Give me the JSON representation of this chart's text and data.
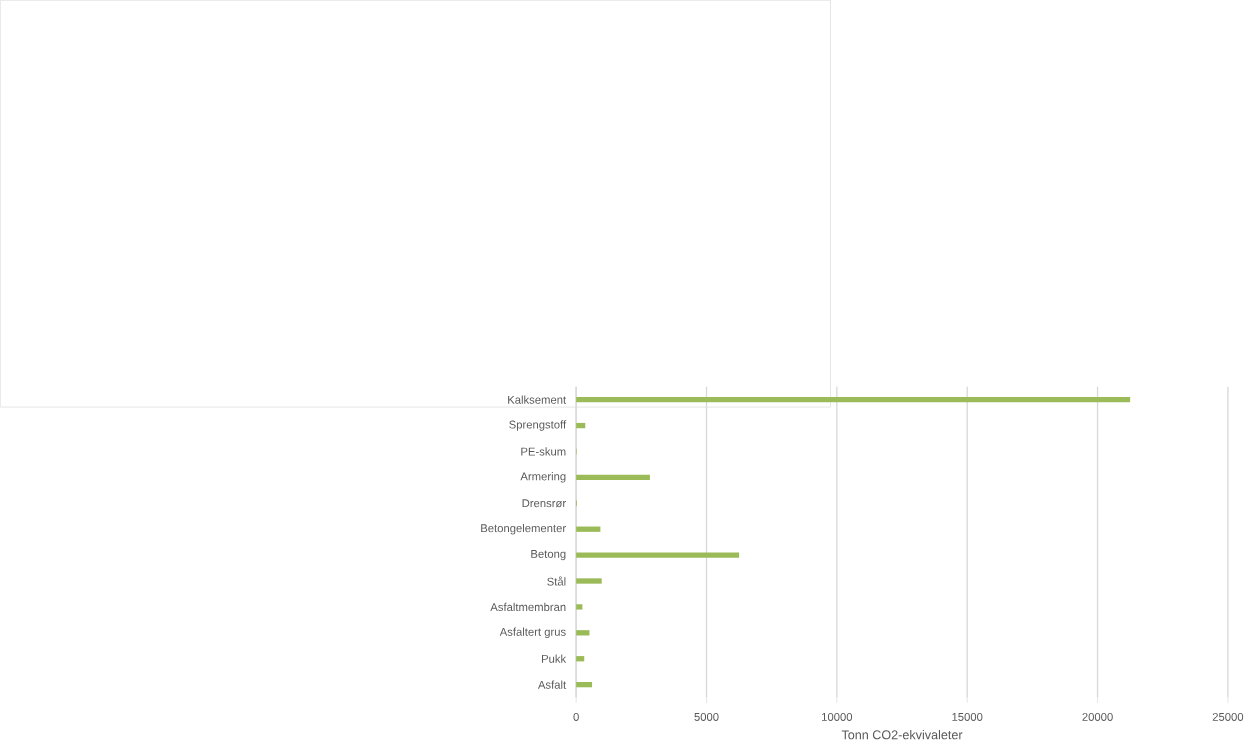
{
  "chart_data": {
    "type": "bar",
    "orientation": "horizontal",
    "xlabel": "Tonn CO2-ekvivaleter",
    "categories": [
      "Kalksement",
      "Sprengstoff",
      "PE-skum",
      "Armering",
      "Drensrør",
      "Betongelementer",
      "Betong",
      "Stål",
      "Asfaltmembran",
      "Asfaltert grus",
      "Pukk",
      "Asfalt"
    ],
    "values": [
      21250,
      350,
      20,
      2830,
      30,
      930,
      6250,
      980,
      240,
      510,
      310,
      610
    ],
    "color": "#9bbb59",
    "xlim": [
      0,
      25000
    ],
    "xticks": [
      0,
      5000,
      10000,
      15000,
      20000,
      25000
    ],
    "grid": "x"
  }
}
